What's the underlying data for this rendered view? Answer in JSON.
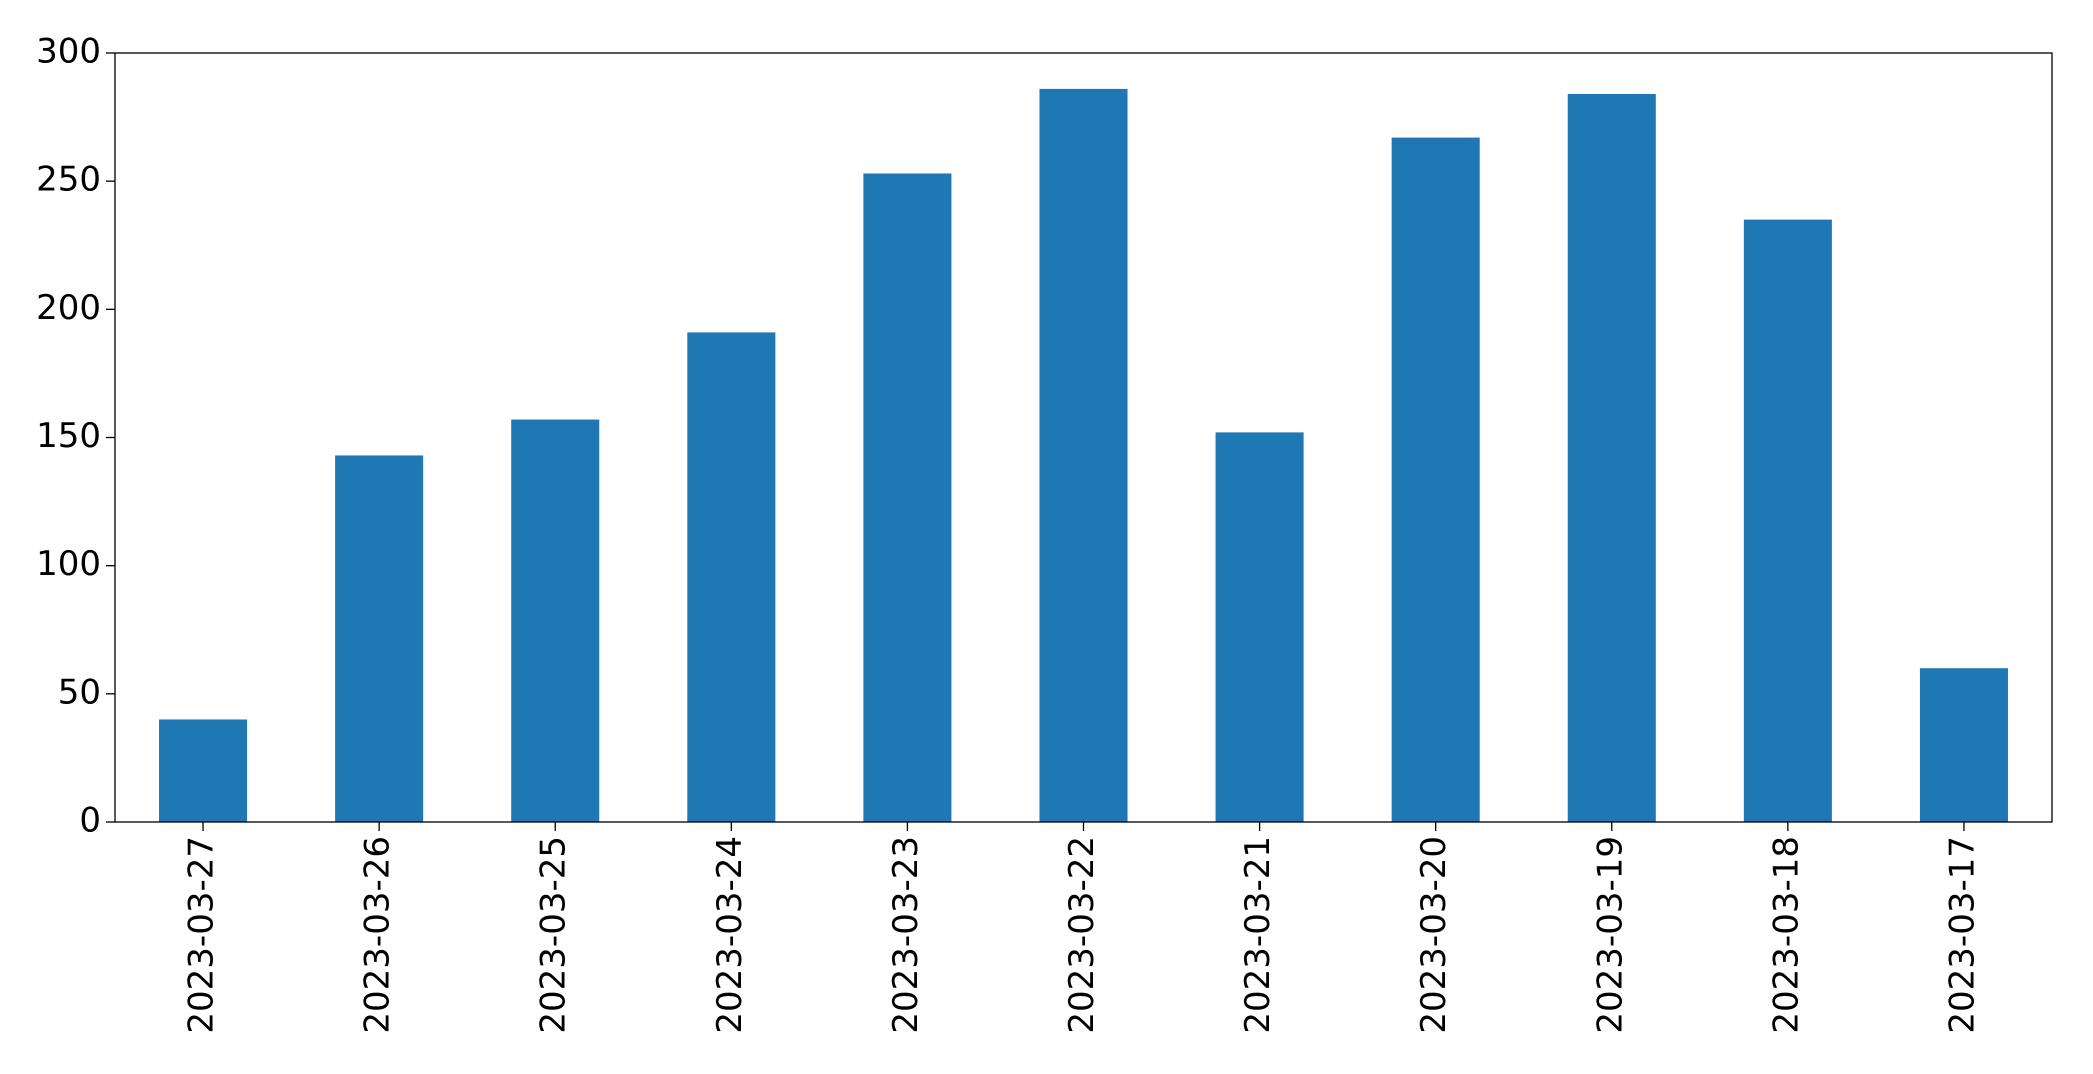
{
  "chart_data": {
    "type": "bar",
    "categories": [
      "2023-03-27",
      "2023-03-26",
      "2023-03-25",
      "2023-03-24",
      "2023-03-23",
      "2023-03-22",
      "2023-03-21",
      "2023-03-20",
      "2023-03-19",
      "2023-03-18",
      "2023-03-17"
    ],
    "values": [
      40,
      143,
      157,
      191,
      253,
      286,
      152,
      267,
      284,
      235,
      60
    ],
    "color": "#1f77b4",
    "ylim": [
      0,
      300
    ],
    "yticks": [
      0,
      50,
      100,
      150,
      200,
      250,
      300
    ],
    "grid": false
  }
}
